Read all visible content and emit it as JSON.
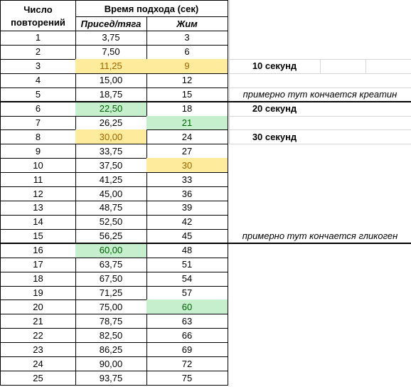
{
  "header": {
    "reps_line1": "Число",
    "reps_line2": "повторений",
    "time_header": "Время подхода (сек)",
    "squat_header": "Присед/тяга",
    "press_header": "Жим"
  },
  "colors": {
    "yellow_fill": "#ffeb9c",
    "yellow_text": "#9c6500",
    "green_fill": "#c6efce",
    "green_text": "#006100"
  },
  "rows": [
    {
      "reps": "1",
      "squat": "3,75",
      "press": "3"
    },
    {
      "reps": "2",
      "squat": "7,50",
      "press": "6"
    },
    {
      "reps": "3",
      "squat": "11,25",
      "press": "9",
      "squat_hl": "yellow",
      "press_hl": "yellow"
    },
    {
      "reps": "4",
      "squat": "15,00",
      "press": "12"
    },
    {
      "reps": "5",
      "squat": "18,75",
      "press": "15"
    },
    {
      "reps": "6",
      "squat": "22,50",
      "press": "18",
      "squat_hl": "green"
    },
    {
      "reps": "7",
      "squat": "26,25",
      "press": "21",
      "press_hl": "green"
    },
    {
      "reps": "8",
      "squat": "30,00",
      "press": "24",
      "squat_hl": "yellow"
    },
    {
      "reps": "9",
      "squat": "33,75",
      "press": "27"
    },
    {
      "reps": "10",
      "squat": "37,50",
      "press": "30",
      "press_hl": "yellow"
    },
    {
      "reps": "11",
      "squat": "41,25",
      "press": "33"
    },
    {
      "reps": "12",
      "squat": "45,00",
      "press": "36"
    },
    {
      "reps": "13",
      "squat": "48,75",
      "press": "39"
    },
    {
      "reps": "14",
      "squat": "52,50",
      "press": "42"
    },
    {
      "reps": "15",
      "squat": "56,25",
      "press": "45"
    },
    {
      "reps": "16",
      "squat": "60,00",
      "press": "48",
      "squat_hl": "green"
    },
    {
      "reps": "17",
      "squat": "63,75",
      "press": "51"
    },
    {
      "reps": "18",
      "squat": "67,50",
      "press": "54"
    },
    {
      "reps": "19",
      "squat": "71,25",
      "press": "57"
    },
    {
      "reps": "20",
      "squat": "75,00",
      "press": "60",
      "press_hl": "green"
    },
    {
      "reps": "21",
      "squat": "78,75",
      "press": "63"
    },
    {
      "reps": "22",
      "squat": "82,50",
      "press": "66"
    },
    {
      "reps": "23",
      "squat": "86,25",
      "press": "69"
    },
    {
      "reps": "24",
      "squat": "90,00",
      "press": "72"
    },
    {
      "reps": "25",
      "squat": "93,75",
      "press": "75"
    }
  ],
  "annotations": [
    {
      "row": 3,
      "text": "10 секунд",
      "style": "bold"
    },
    {
      "row": 5,
      "text": "примерно тут кончается креатин",
      "style": "italic"
    },
    {
      "row": 6,
      "text": "20 секунд",
      "style": "bold"
    },
    {
      "row": 8,
      "text": "30 секунд",
      "style": "bold"
    },
    {
      "row": 15,
      "text": "примерно тут кончается гликоген",
      "style": "italic"
    }
  ]
}
